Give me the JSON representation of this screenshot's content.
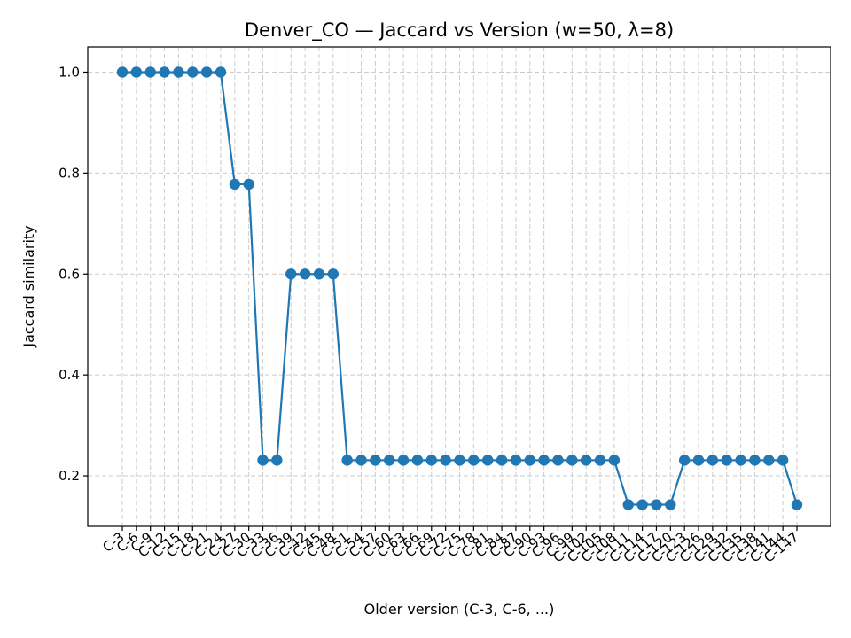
{
  "chart_data": {
    "type": "line",
    "title": "Denver_CO — Jaccard vs Version (w=50, λ=8)",
    "xlabel": "Older version (C-3, C-6, ...)",
    "ylabel": "Jaccard similarity",
    "categories": [
      "C-3",
      "C-6",
      "C-9",
      "C-12",
      "C-15",
      "C-18",
      "C-21",
      "C-24",
      "C-27",
      "C-30",
      "C-33",
      "C-36",
      "C-39",
      "C-42",
      "C-45",
      "C-48",
      "C-51",
      "C-54",
      "C-57",
      "C-60",
      "C-63",
      "C-66",
      "C-69",
      "C-72",
      "C-75",
      "C-78",
      "C-81",
      "C-84",
      "C-87",
      "C-90",
      "C-93",
      "C-96",
      "C-99",
      "C-102",
      "C-105",
      "C-108",
      "C-111",
      "C-114",
      "C-117",
      "C-120",
      "C-123",
      "C-126",
      "C-129",
      "C-132",
      "C-135",
      "C-138",
      "C-141",
      "C-144",
      "C-147"
    ],
    "series": [
      {
        "name": "",
        "color": "#1f77b4",
        "values": [
          1.0,
          1.0,
          1.0,
          1.0,
          1.0,
          1.0,
          1.0,
          1.0,
          0.778,
          0.778,
          0.231,
          0.231,
          0.6,
          0.6,
          0.6,
          0.6,
          0.231,
          0.231,
          0.231,
          0.231,
          0.231,
          0.231,
          0.231,
          0.231,
          0.231,
          0.231,
          0.231,
          0.231,
          0.231,
          0.231,
          0.231,
          0.231,
          0.231,
          0.231,
          0.231,
          0.231,
          0.143,
          0.143,
          0.143,
          0.143,
          0.231,
          0.231,
          0.231,
          0.231,
          0.231,
          0.231,
          0.231,
          0.231,
          0.143
        ]
      }
    ],
    "ylim": [
      0.1,
      1.05
    ],
    "yticks": [
      0.2,
      0.4,
      0.6,
      0.8,
      1.0
    ],
    "ytick_labels": [
      "0.2",
      "0.4",
      "0.6",
      "0.8",
      "1.0"
    ],
    "grid": true,
    "legend": "none"
  }
}
